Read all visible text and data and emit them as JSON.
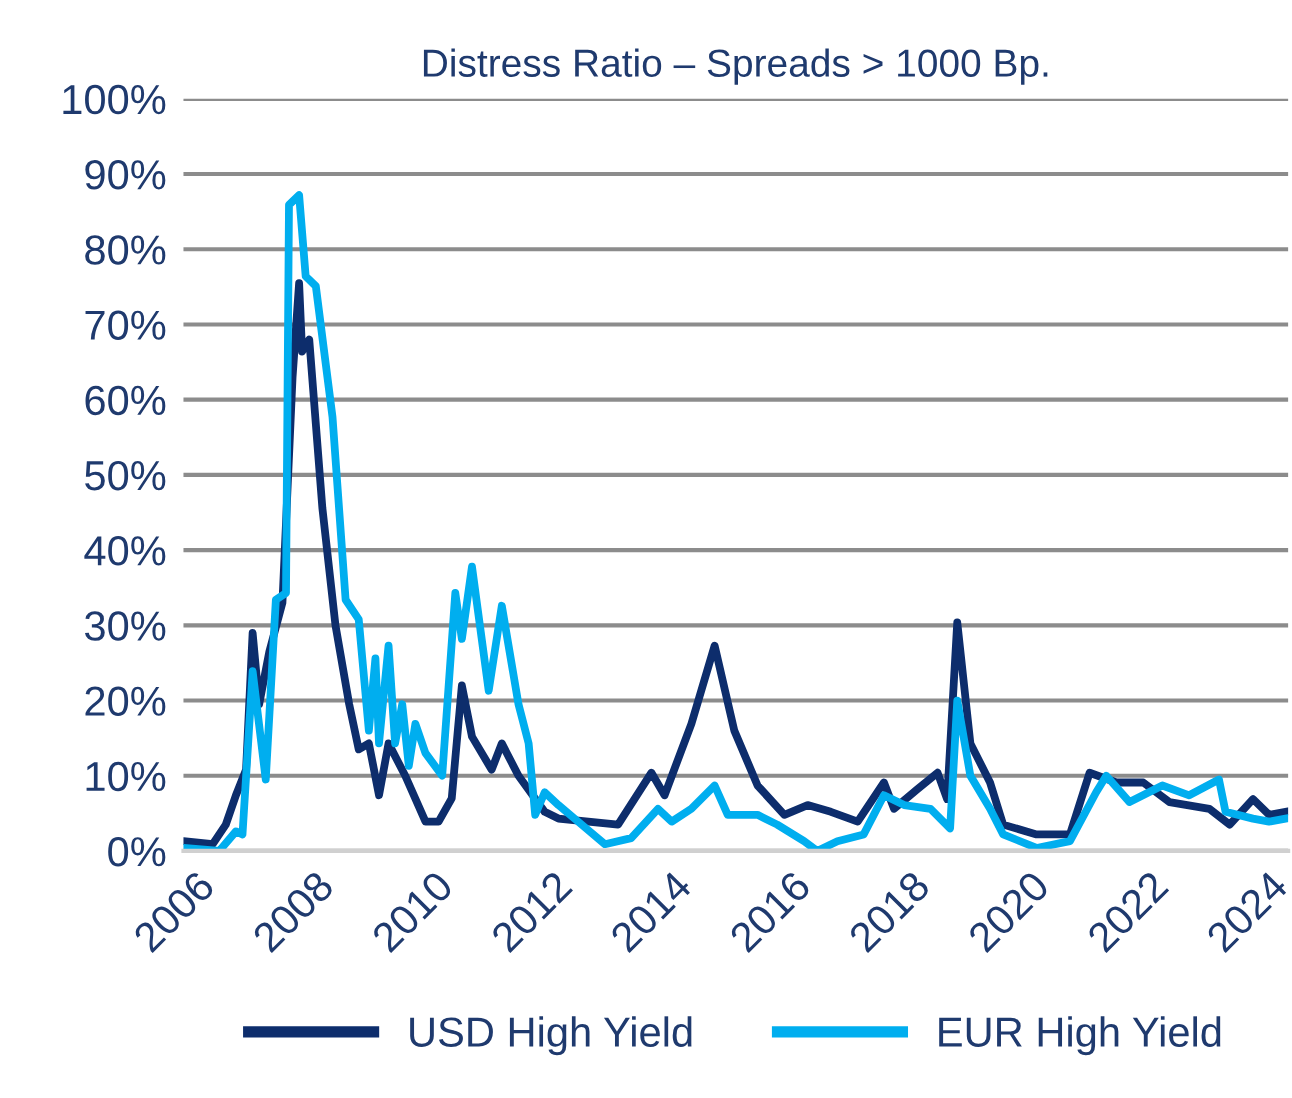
{
  "chart_data": {
    "type": "line",
    "title": "Distress Ratio – Spreads > 1000 Bp.",
    "xlim": [
      2005.8,
      2024.33
    ],
    "xticks": [
      2006,
      2008,
      2010,
      2012,
      2014,
      2016,
      2018,
      2020,
      2022,
      2024
    ],
    "ylim": [
      0,
      100
    ],
    "yticks": [
      {
        "value": 0,
        "label": "0%"
      },
      {
        "value": 10,
        "label": "10%"
      },
      {
        "value": 20,
        "label": "20%"
      },
      {
        "value": 30,
        "label": "30%"
      },
      {
        "value": 40,
        "label": "40%"
      },
      {
        "value": 50,
        "label": "50%"
      },
      {
        "value": 60,
        "label": "60%"
      },
      {
        "value": 70,
        "label": "70%"
      },
      {
        "value": 80,
        "label": "80%"
      },
      {
        "value": 90,
        "label": "90%"
      },
      {
        "value": 100,
        "label": "100%"
      }
    ],
    "grid": "y",
    "legend": "bottom",
    "marker": "none",
    "line_style": "solid",
    "series": [
      {
        "name": "USD High Yield",
        "color": "#0d2d6c",
        "x": [
          2005.8,
          2006.29,
          2006.51,
          2006.68,
          2006.85,
          2006.96,
          2007.07,
          2007.24,
          2007.46,
          2007.63,
          2007.74,
          2007.79,
          2007.91,
          2008.13,
          2008.35,
          2008.58,
          2008.74,
          2008.91,
          2009.08,
          2009.24,
          2009.52,
          2009.86,
          2010.08,
          2010.3,
          2010.47,
          2010.64,
          2010.97,
          2011.14,
          2011.42,
          2011.86,
          2012.09,
          2013.09,
          2013.65,
          2013.87,
          2014.32,
          2014.71,
          2015.04,
          2015.43,
          2015.88,
          2016.27,
          2016.66,
          2017.11,
          2017.55,
          2017.72,
          2018.11,
          2018.45,
          2018.61,
          2018.78,
          2019.0,
          2019.33,
          2019.55,
          2020.11,
          2020.67,
          2021.0,
          2021.45,
          2021.9,
          2022.34,
          2023.01,
          2023.35,
          2023.74,
          2024.01,
          2024.29
        ],
        "values": [
          1.3,
          0.9,
          3.5,
          7.4,
          10.8,
          29,
          19.5,
          26.5,
          33,
          63,
          75.5,
          66.4,
          68,
          45.6,
          30,
          19.5,
          13.5,
          14.3,
          7.4,
          14.3,
          10,
          3.9,
          3.9,
          7,
          22,
          15.2,
          10.8,
          14.3,
          10,
          5.2,
          4.3,
          3.5,
          10.4,
          7.4,
          16.9,
          27.3,
          16,
          8.7,
          4.8,
          6.1,
          5.2,
          3.9,
          9.1,
          5.6,
          8.2,
          10.4,
          6.9,
          30.4,
          14.3,
          9.1,
          3.5,
          2.2,
          2.2,
          10.4,
          9.1,
          9.1,
          6.5,
          5.6,
          3.5,
          6.9,
          4.8,
          5.2
        ]
      },
      {
        "name": "EUR High Yield",
        "color": "#00aeef",
        "x": [
          2005.8,
          2006.4,
          2006.68,
          2006.79,
          2006.96,
          2007.18,
          2007.35,
          2007.52,
          2007.57,
          2007.74,
          2007.85,
          2008.02,
          2008.3,
          2008.52,
          2008.74,
          2008.91,
          2009.02,
          2009.08,
          2009.24,
          2009.35,
          2009.47,
          2009.58,
          2009.69,
          2009.86,
          2010.14,
          2010.36,
          2010.47,
          2010.64,
          2010.92,
          2011.14,
          2011.42,
          2011.59,
          2011.7,
          2011.86,
          2012.09,
          2012.42,
          2012.87,
          2013.31,
          2013.76,
          2013.99,
          2014.32,
          2014.71,
          2014.93,
          2015.43,
          2015.76,
          2016.21,
          2016.43,
          2016.77,
          2017.21,
          2017.55,
          2017.89,
          2018.33,
          2018.66,
          2018.78,
          2019.0,
          2019.33,
          2019.55,
          2020.11,
          2020.67,
          2021.11,
          2021.28,
          2021.67,
          2022.22,
          2022.67,
          2023.17,
          2023.28,
          2023.74,
          2024.01,
          2024.29
        ],
        "values": [
          0.4,
          0,
          2.6,
          2.2,
          23.9,
          9.5,
          33.4,
          34.3,
          85.9,
          87.2,
          76.4,
          75.1,
          57.7,
          33.4,
          30.8,
          16,
          25.6,
          14.3,
          27.3,
          14.3,
          19.5,
          11.3,
          16.9,
          13,
          10,
          34.3,
          28.2,
          37.8,
          21.3,
          32.6,
          19.5,
          14.3,
          4.8,
          7.8,
          6.1,
          3.9,
          0.9,
          1.7,
          5.6,
          3.9,
          5.6,
          8.7,
          4.8,
          4.8,
          3.5,
          1.3,
          0,
          1.3,
          2.2,
          7.4,
          6.1,
          5.6,
          3.0,
          20,
          10,
          5.6,
          2.2,
          0.4,
          1.3,
          7.8,
          10,
          6.5,
          8.7,
          7.4,
          9.5,
          5.2,
          4.3,
          3.9,
          4.3
        ]
      }
    ]
  }
}
